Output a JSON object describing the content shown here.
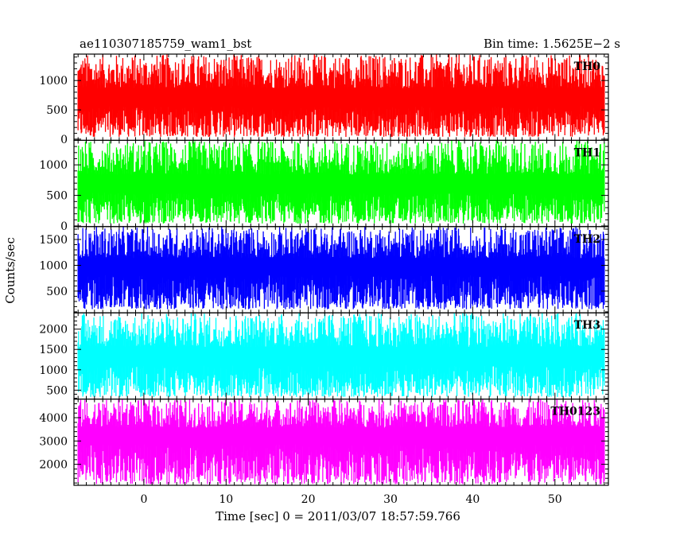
{
  "header": {
    "left_title": "ae110307185759_wam1_bst",
    "right_title": "Bin time: 1.5625E−2 s"
  },
  "chart_data": {
    "type": "line",
    "xlabel": "Time [sec] 0 = 2011/03/07 18:57:59.766",
    "ylabel": "Counts/sec",
    "xlim": [
      -8.5,
      56.5
    ],
    "data_xrange": [
      -8,
      56
    ],
    "x_ticks": [
      0,
      10,
      20,
      30,
      40,
      50
    ],
    "grid": false,
    "panels": [
      {
        "name": "TH0",
        "color": "#ff0000",
        "ylim": [
          -20,
          1450
        ],
        "y_ticks": [
          0,
          500,
          1000
        ],
        "mean": 620,
        "min": 40,
        "max": 1450
      },
      {
        "name": "TH1",
        "color": "#00ff00",
        "ylim": [
          -10,
          1400
        ],
        "y_ticks": [
          0,
          500,
          1000
        ],
        "mean": 600,
        "min": 40,
        "max": 1400
      },
      {
        "name": "TH2",
        "color": "#0000ff",
        "ylim": [
          80,
          1750
        ],
        "y_ticks": [
          500,
          1000,
          1500
        ],
        "mean": 880,
        "min": 150,
        "max": 1750
      },
      {
        "name": "TH3",
        "color": "#00ffff",
        "ylim": [
          280,
          2400
        ],
        "y_ticks": [
          500,
          1000,
          1500,
          2000
        ],
        "mean": 1200,
        "min": 330,
        "max": 2400
      },
      {
        "name": "TH0123",
        "color": "#ff00ff",
        "ylim": [
          1100,
          4800
        ],
        "y_ticks": [
          2000,
          3000,
          4000
        ],
        "mean": 3050,
        "min": 1150,
        "max": 4800
      }
    ]
  }
}
